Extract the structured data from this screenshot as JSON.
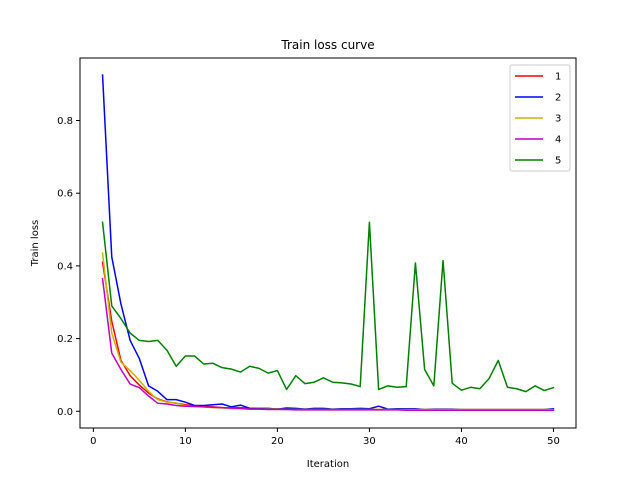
{
  "chart_data": {
    "type": "line",
    "title": "Train loss curve",
    "xlabel": "Iteration",
    "ylabel": "Train loss",
    "xlim": [
      -1.45,
      52.45
    ],
    "ylim": [
      -0.046,
      0.972
    ],
    "xticks": [
      0,
      10,
      20,
      30,
      40,
      50
    ],
    "yticks": [
      0.0,
      0.2,
      0.4,
      0.6,
      0.8
    ],
    "xtick_labels": [
      "0",
      "10",
      "20",
      "30",
      "40",
      "50"
    ],
    "ytick_labels": [
      "0.0",
      "0.2",
      "0.4",
      "0.6",
      "0.8"
    ],
    "grid": false,
    "legend_position": "top-right",
    "x": [
      1,
      2,
      3,
      4,
      5,
      6,
      7,
      8,
      9,
      10,
      11,
      12,
      13,
      14,
      15,
      16,
      17,
      18,
      19,
      20,
      21,
      22,
      23,
      24,
      25,
      26,
      27,
      28,
      29,
      30,
      31,
      32,
      33,
      34,
      35,
      36,
      37,
      38,
      39,
      40,
      41,
      42,
      43,
      44,
      45,
      46,
      47,
      48,
      49,
      50
    ],
    "series": [
      {
        "name": "1",
        "color": "#ff0000",
        "values": [
          0.41,
          0.248,
          0.14,
          0.098,
          0.072,
          0.05,
          0.034,
          0.026,
          0.022,
          0.018,
          0.015,
          0.014,
          0.012,
          0.01,
          0.009,
          0.01,
          0.008,
          0.007,
          0.007,
          0.007,
          0.006,
          0.006,
          0.006,
          0.005,
          0.005,
          0.005,
          0.005,
          0.005,
          0.005,
          0.005,
          0.005,
          0.005,
          0.005,
          0.005,
          0.004,
          0.004,
          0.004,
          0.004,
          0.004,
          0.004,
          0.004,
          0.004,
          0.004,
          0.004,
          0.004,
          0.004,
          0.004,
          0.004,
          0.004,
          0.004
        ]
      },
      {
        "name": "2",
        "color": "#0000ff",
        "values": [
          0.925,
          0.425,
          0.295,
          0.195,
          0.145,
          0.07,
          0.055,
          0.032,
          0.032,
          0.025,
          0.016,
          0.016,
          0.018,
          0.02,
          0.012,
          0.017,
          0.008,
          0.008,
          0.008,
          0.006,
          0.009,
          0.008,
          0.006,
          0.008,
          0.008,
          0.006,
          0.007,
          0.007,
          0.008,
          0.007,
          0.014,
          0.006,
          0.007,
          0.007,
          0.007,
          0.005,
          0.006,
          0.006,
          0.006,
          0.005,
          0.005,
          0.005,
          0.005,
          0.005,
          0.005,
          0.005,
          0.005,
          0.005,
          0.005,
          0.007
        ]
      },
      {
        "name": "3",
        "color": "#c8b400",
        "values": [
          0.435,
          0.215,
          0.135,
          0.112,
          0.085,
          0.055,
          0.032,
          0.025,
          0.023,
          0.015,
          0.013,
          0.012,
          0.01,
          0.009,
          0.007,
          0.007,
          0.006,
          0.006,
          0.006,
          0.006,
          0.005,
          0.005,
          0.005,
          0.005,
          0.005,
          0.005,
          0.005,
          0.005,
          0.005,
          0.005,
          0.005,
          0.005,
          0.005,
          0.005,
          0.005,
          0.005,
          0.005,
          0.005,
          0.005,
          0.005,
          0.005,
          0.005,
          0.005,
          0.005,
          0.005,
          0.005,
          0.005,
          0.005,
          0.005,
          0.005
        ]
      },
      {
        "name": "4",
        "color": "#c000c0",
        "values": [
          0.365,
          0.16,
          0.115,
          0.075,
          0.065,
          0.042,
          0.022,
          0.02,
          0.016,
          0.014,
          0.013,
          0.012,
          0.011,
          0.01,
          0.009,
          0.008,
          0.006,
          0.006,
          0.005,
          0.005,
          0.005,
          0.004,
          0.004,
          0.004,
          0.004,
          0.004,
          0.004,
          0.004,
          0.004,
          0.004,
          0.004,
          0.004,
          0.004,
          0.003,
          0.003,
          0.003,
          0.003,
          0.003,
          0.003,
          0.003,
          0.003,
          0.003,
          0.003,
          0.003,
          0.003,
          0.003,
          0.003,
          0.003,
          0.003,
          0.003
        ]
      },
      {
        "name": "5",
        "color": "#008000",
        "values": [
          0.52,
          0.29,
          0.255,
          0.215,
          0.195,
          0.192,
          0.195,
          0.168,
          0.124,
          0.152,
          0.152,
          0.13,
          0.132,
          0.12,
          0.116,
          0.108,
          0.124,
          0.118,
          0.105,
          0.112,
          0.06,
          0.098,
          0.076,
          0.08,
          0.092,
          0.08,
          0.078,
          0.075,
          0.068,
          0.52,
          0.06,
          0.07,
          0.066,
          0.068,
          0.408,
          0.115,
          0.07,
          0.415,
          0.077,
          0.058,
          0.066,
          0.062,
          0.09,
          0.14,
          0.066,
          0.062,
          0.054,
          0.07,
          0.057,
          0.065
        ]
      }
    ]
  }
}
